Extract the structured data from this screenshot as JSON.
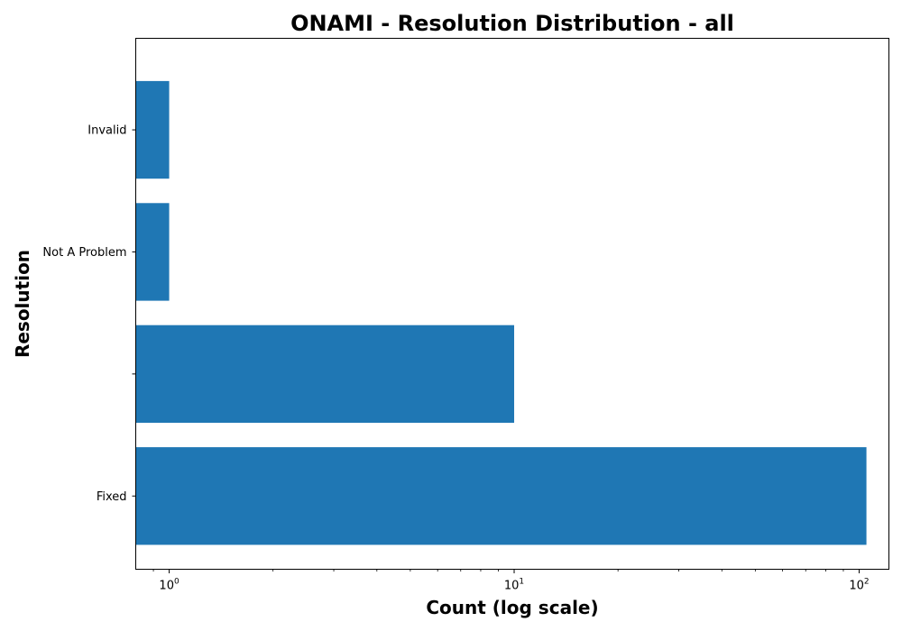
{
  "chart_data": {
    "type": "bar",
    "orientation": "horizontal",
    "title": "ONAMI - Resolution Distribution - all",
    "xlabel": "Count (log scale)",
    "ylabel": "Resolution",
    "xscale": "log",
    "xlim": [
      0.8,
      122
    ],
    "x_ticks": [
      {
        "base": "10",
        "exp": "0",
        "value": 1
      },
      {
        "base": "10",
        "exp": "1",
        "value": 10
      },
      {
        "base": "10",
        "exp": "2",
        "value": 100
      }
    ],
    "categories": [
      "Fixed",
      "",
      "Not A Problem",
      "Invalid"
    ],
    "values": [
      105,
      10,
      1,
      1
    ],
    "color": "#1f77b4"
  }
}
